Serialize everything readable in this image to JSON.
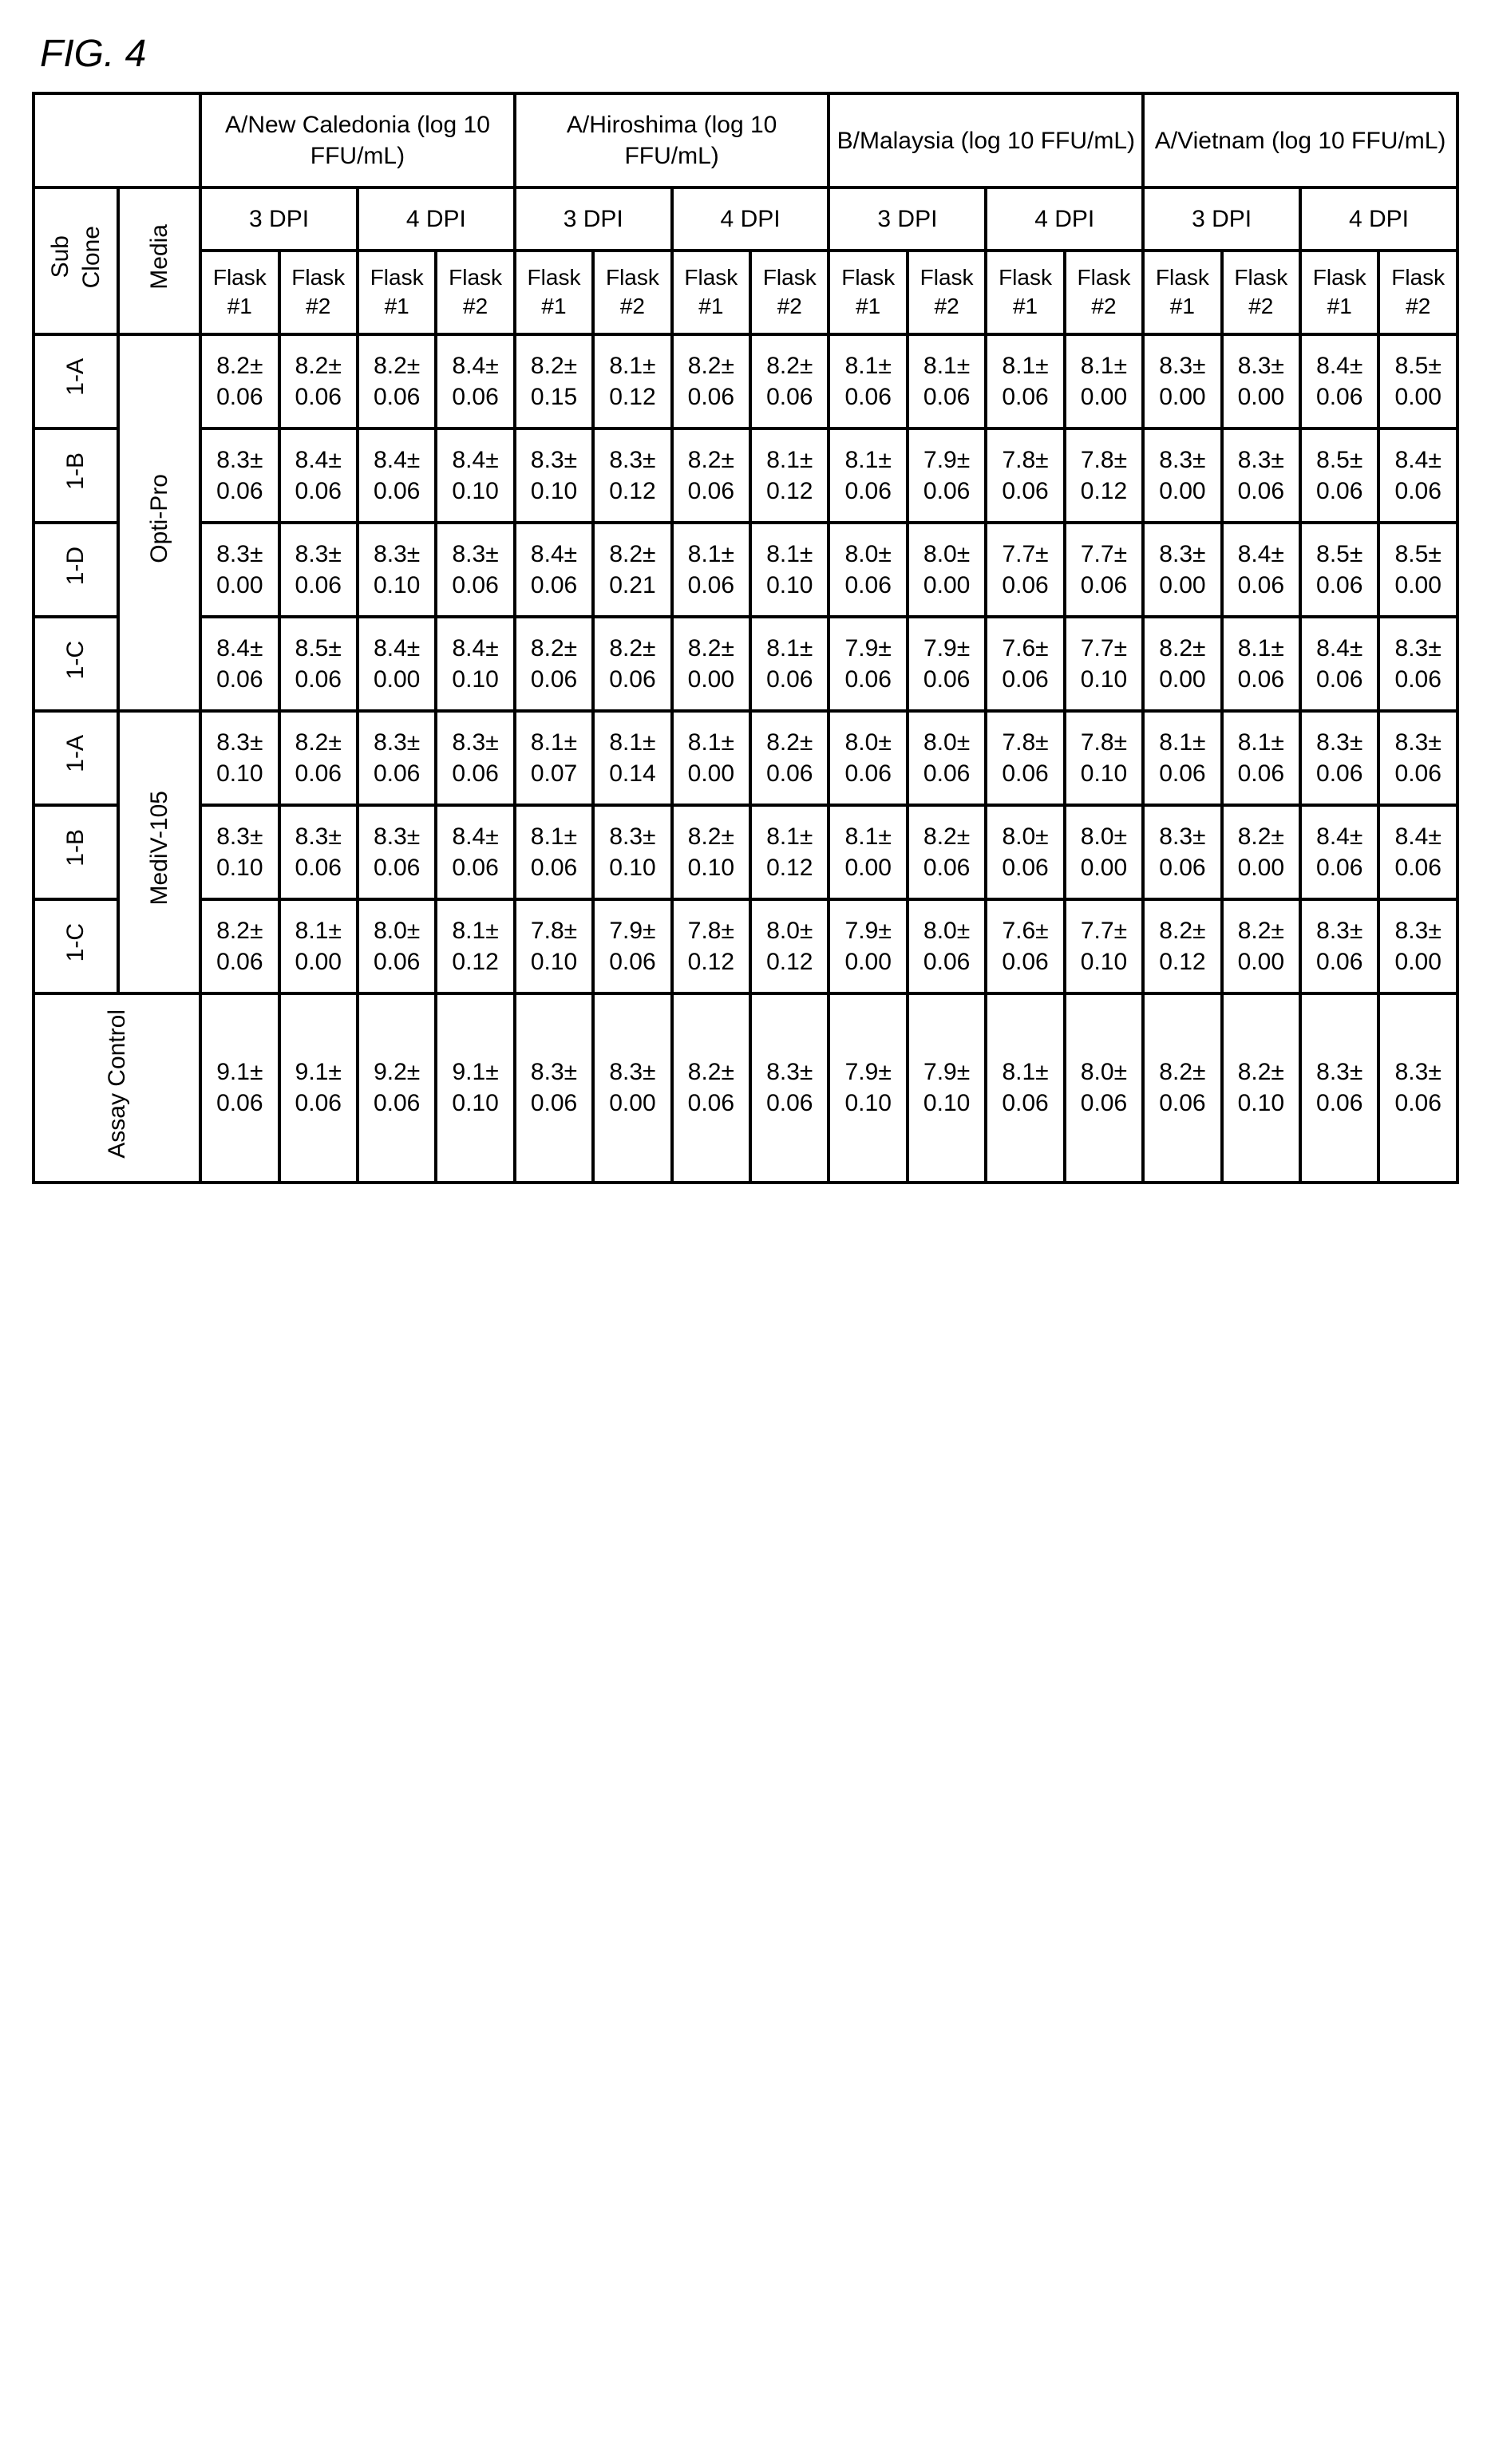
{
  "figure_label": "FIG. 4",
  "table": {
    "border_color": "#000000",
    "background_color": "#ffffff",
    "text_color": "#000000",
    "font_family": "Arial",
    "strain_headers": [
      "A/New Caledonia (log 10 FFU/mL)",
      "A/Hiroshima (log 10 FFU/mL)",
      "B/Malaysia (log 10 FFU/mL)",
      "A/Vietnam (log 10 FFU/mL)"
    ],
    "dpi_headers": [
      "3 DPI",
      "4 DPI"
    ],
    "flask_headers": [
      "Flask #1",
      "Flask #2"
    ],
    "row_label_headers": {
      "sub_clone": "Sub Clone",
      "media": "Media"
    },
    "media_groups": [
      {
        "label": "Opti-Pro",
        "rowspan": 4
      },
      {
        "label": "MediV-105",
        "rowspan": 3
      }
    ],
    "rows": [
      {
        "sub_clone": "1-A",
        "cells": [
          "8.2± 0.06",
          "8.2± 0.06",
          "8.2± 0.06",
          "8.4± 0.06",
          "8.2± 0.15",
          "8.1± 0.12",
          "8.2± 0.06",
          "8.2± 0.06",
          "8.1± 0.06",
          "8.1± 0.06",
          "8.1± 0.06",
          "8.1± 0.00",
          "8.3± 0.00",
          "8.3± 0.00",
          "8.4± 0.06",
          "8.5± 0.00"
        ]
      },
      {
        "sub_clone": "1-B",
        "cells": [
          "8.3± 0.06",
          "8.4± 0.06",
          "8.4± 0.06",
          "8.4± 0.10",
          "8.3± 0.10",
          "8.3± 0.12",
          "8.2± 0.06",
          "8.1± 0.12",
          "8.1± 0.06",
          "7.9± 0.06",
          "7.8± 0.06",
          "7.8± 0.12",
          "8.3± 0.00",
          "8.3± 0.06",
          "8.5± 0.06",
          "8.4± 0.06"
        ]
      },
      {
        "sub_clone": "1-D",
        "cells": [
          "8.3± 0.00",
          "8.3± 0.06",
          "8.3± 0.10",
          "8.3± 0.06",
          "8.4± 0.06",
          "8.2± 0.21",
          "8.1± 0.06",
          "8.1± 0.10",
          "8.0± 0.06",
          "8.0± 0.00",
          "7.7± 0.06",
          "7.7± 0.06",
          "8.3± 0.00",
          "8.4± 0.06",
          "8.5± 0.06",
          "8.5± 0.00"
        ]
      },
      {
        "sub_clone": "1-C",
        "cells": [
          "8.4± 0.06",
          "8.5± 0.06",
          "8.4± 0.00",
          "8.4± 0.10",
          "8.2± 0.06",
          "8.2± 0.06",
          "8.2± 0.00",
          "8.1± 0.06",
          "7.9± 0.06",
          "7.9± 0.06",
          "7.6± 0.06",
          "7.7± 0.10",
          "8.2± 0.00",
          "8.1± 0.06",
          "8.4± 0.06",
          "8.3± 0.06"
        ]
      },
      {
        "sub_clone": "1-A",
        "cells": [
          "8.3± 0.10",
          "8.2± 0.06",
          "8.3± 0.06",
          "8.3± 0.06",
          "8.1± 0.07",
          "8.1± 0.14",
          "8.1± 0.00",
          "8.2± 0.06",
          "8.0± 0.06",
          "8.0± 0.06",
          "7.8± 0.06",
          "7.8± 0.10",
          "8.1± 0.06",
          "8.1± 0.06",
          "8.3± 0.06",
          "8.3± 0.06"
        ]
      },
      {
        "sub_clone": "1-B",
        "cells": [
          "8.3± 0.10",
          "8.3± 0.06",
          "8.3± 0.06",
          "8.4± 0.06",
          "8.1± 0.06",
          "8.3± 0.10",
          "8.2± 0.10",
          "8.1± 0.12",
          "8.1± 0.00",
          "8.2± 0.06",
          "8.0± 0.06",
          "8.0± 0.00",
          "8.3± 0.06",
          "8.2± 0.00",
          "8.4± 0.06",
          "8.4± 0.06"
        ]
      },
      {
        "sub_clone": "1-C",
        "cells": [
          "8.2± 0.06",
          "8.1± 0.00",
          "8.0± 0.06",
          "8.1± 0.12",
          "7.8± 0.10",
          "7.9± 0.06",
          "7.8± 0.12",
          "8.0± 0.12",
          "7.9± 0.00",
          "8.0± 0.06",
          "7.6± 0.06",
          "7.7± 0.10",
          "8.2± 0.12",
          "8.2± 0.00",
          "8.3± 0.06",
          "8.3± 0.00"
        ]
      }
    ],
    "assay_control": {
      "label": "Assay Control",
      "cells": [
        "9.1± 0.06",
        "9.1± 0.06",
        "9.2± 0.06",
        "9.1± 0.10",
        "8.3± 0.06",
        "8.3± 0.00",
        "8.2± 0.06",
        "8.3± 0.06",
        "7.9± 0.10",
        "7.9± 0.10",
        "8.1± 0.06",
        "8.0± 0.06",
        "8.2± 0.06",
        "8.2± 0.10",
        "8.3± 0.06",
        "8.3± 0.06"
      ]
    }
  }
}
